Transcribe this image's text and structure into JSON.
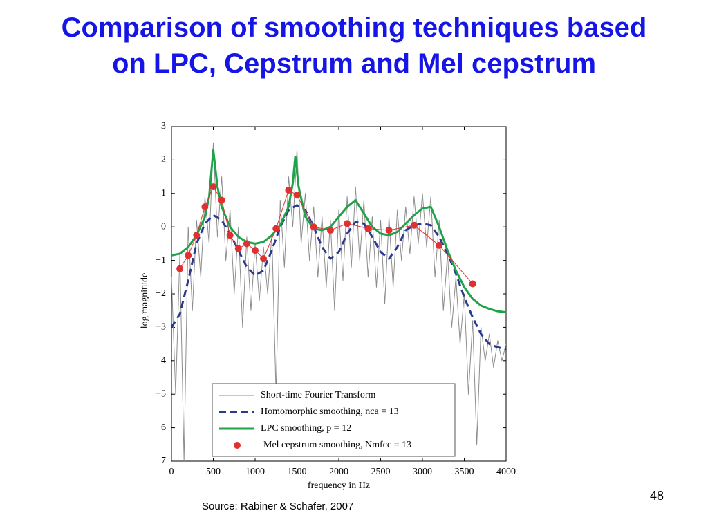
{
  "slide_title": "Comparison of smoothing techniques based on LPC, Cepstrum and Mel cepstrum",
  "source": "Source: Rabiner & Schafer, 2007",
  "page_number": "48",
  "chart_data": {
    "type": "line",
    "xlabel": "frequency in Hz",
    "ylabel": "log magnitude",
    "xlim": [
      0,
      4000
    ],
    "xticks": [
      0,
      500,
      1000,
      1500,
      2000,
      2500,
      3000,
      3500,
      4000
    ],
    "ylim": [
      -7,
      3
    ],
    "yticks": [
      {
        "value": -7,
        "label": "−7"
      },
      {
        "value": -6,
        "label": "−6"
      },
      {
        "value": -5,
        "label": "−5"
      },
      {
        "value": -4,
        "label": "−4"
      },
      {
        "value": -3,
        "label": "−3"
      },
      {
        "value": -2,
        "label": "−2"
      },
      {
        "value": -1,
        "label": "−1"
      },
      0,
      1,
      2,
      3
    ],
    "grid": false,
    "legend": "lower center",
    "series": [
      {
        "name": "Short-time Fourier Transform",
        "color": "#8c8c8c",
        "width": 1,
        "dash": false,
        "marker": false,
        "x": [
          0,
          50,
          100,
          150,
          200,
          250,
          300,
          350,
          400,
          450,
          500,
          550,
          600,
          650,
          700,
          750,
          800,
          850,
          900,
          950,
          1000,
          1050,
          1100,
          1150,
          1200,
          1250,
          1300,
          1350,
          1400,
          1450,
          1500,
          1550,
          1600,
          1650,
          1700,
          1750,
          1800,
          1850,
          1900,
          1950,
          2000,
          2050,
          2100,
          2150,
          2200,
          2250,
          2300,
          2350,
          2400,
          2450,
          2500,
          2550,
          2600,
          2650,
          2700,
          2750,
          2800,
          2850,
          2900,
          2950,
          3000,
          3050,
          3100,
          3150,
          3200,
          3250,
          3300,
          3350,
          3400,
          3450,
          3500,
          3550,
          3600,
          3650,
          3700,
          3750,
          3800,
          3850,
          3900,
          3950,
          4000
        ],
        "values": [
          -1.5,
          -5.0,
          -0.8,
          -7.0,
          0.0,
          -2.5,
          0.2,
          -1.5,
          0.9,
          -0.5,
          2.5,
          -0.3,
          1.5,
          -1.0,
          0.5,
          -2.0,
          0.0,
          -3.0,
          -0.3,
          -2.5,
          -0.5,
          -2.2,
          -0.6,
          -2.0,
          -0.2,
          -5.0,
          0.8,
          -1.2,
          1.5,
          0.0,
          2.3,
          -0.5,
          1.0,
          -1.0,
          0.6,
          -1.5,
          0.3,
          -1.8,
          0.2,
          -2.5,
          0.5,
          -1.6,
          0.9,
          -1.2,
          1.2,
          -1.0,
          0.8,
          -1.5,
          0.3,
          -1.8,
          0.2,
          -2.3,
          0.3,
          -1.8,
          0.5,
          -1.0,
          0.6,
          -0.8,
          0.9,
          -0.5,
          1.0,
          -0.6,
          0.9,
          -1.5,
          0.2,
          -2.5,
          -0.8,
          -3.0,
          -1.5,
          -3.5,
          -2.0,
          -5.0,
          -2.8,
          -6.5,
          -3.0,
          -4.0,
          -3.2,
          -4.2,
          -3.4,
          -4.0,
          -3.5
        ]
      },
      {
        "name": "Homomorphic smoothing, nca = 13",
        "color": "#2b3a8c",
        "width": 3,
        "dash": true,
        "marker": false,
        "x": [
          0,
          100,
          200,
          300,
          400,
          500,
          600,
          700,
          800,
          900,
          1000,
          1100,
          1200,
          1300,
          1400,
          1500,
          1600,
          1700,
          1800,
          1900,
          2000,
          2100,
          2200,
          2300,
          2400,
          2500,
          2600,
          2700,
          2800,
          2900,
          3000,
          3100,
          3200,
          3300,
          3400,
          3500,
          3600,
          3700,
          3800,
          3900,
          4000
        ],
        "values": [
          -3.0,
          -2.6,
          -1.6,
          -0.5,
          0.1,
          0.35,
          0.2,
          -0.2,
          -0.7,
          -1.2,
          -1.45,
          -1.3,
          -0.7,
          0.0,
          0.5,
          0.65,
          0.5,
          0.0,
          -0.6,
          -0.95,
          -0.75,
          -0.2,
          0.15,
          0.1,
          -0.3,
          -0.75,
          -0.95,
          -0.6,
          -0.1,
          0.05,
          0.1,
          0.05,
          -0.3,
          -0.8,
          -1.4,
          -2.1,
          -2.7,
          -3.2,
          -3.5,
          -3.6,
          -3.65
        ]
      },
      {
        "name": "LPC smoothing, p = 12",
        "color": "#1fa34a",
        "width": 3,
        "dash": false,
        "marker": false,
        "x": [
          0,
          100,
          200,
          300,
          400,
          450,
          500,
          550,
          600,
          700,
          800,
          900,
          1000,
          1100,
          1200,
          1300,
          1400,
          1450,
          1480,
          1520,
          1600,
          1700,
          1800,
          1900,
          2000,
          2100,
          2200,
          2300,
          2400,
          2500,
          2600,
          2700,
          2800,
          2900,
          3000,
          3100,
          3200,
          3300,
          3400,
          3500,
          3600,
          3700,
          3800,
          3900,
          4000
        ],
        "values": [
          -0.85,
          -0.8,
          -0.6,
          -0.25,
          0.3,
          0.9,
          2.3,
          1.2,
          0.6,
          0.0,
          -0.3,
          -0.45,
          -0.5,
          -0.45,
          -0.25,
          0.05,
          0.6,
          1.3,
          2.1,
          1.2,
          0.3,
          -0.05,
          -0.1,
          0.0,
          0.3,
          0.6,
          0.8,
          0.4,
          0.0,
          -0.2,
          -0.25,
          -0.15,
          0.1,
          0.35,
          0.55,
          0.6,
          0.0,
          -0.7,
          -1.3,
          -1.8,
          -2.15,
          -2.35,
          -2.45,
          -2.52,
          -2.55
        ]
      },
      {
        "name": "Mel cepstrum smoothing, Nmfcc = 13",
        "color": "#e03030",
        "width": 1,
        "dash": false,
        "marker": true,
        "x": [
          100,
          200,
          300,
          400,
          500,
          600,
          700,
          800,
          900,
          1000,
          1100,
          1250,
          1400,
          1500,
          1700,
          1900,
          2100,
          2350,
          2600,
          2900,
          3200,
          3600
        ],
        "values": [
          -1.25,
          -0.85,
          -0.25,
          0.6,
          1.2,
          0.8,
          -0.25,
          -0.65,
          -0.5,
          -0.7,
          -0.95,
          -0.05,
          1.1,
          0.95,
          0.0,
          -0.1,
          0.1,
          -0.05,
          -0.1,
          0.05,
          -0.55,
          -1.7
        ]
      }
    ]
  }
}
